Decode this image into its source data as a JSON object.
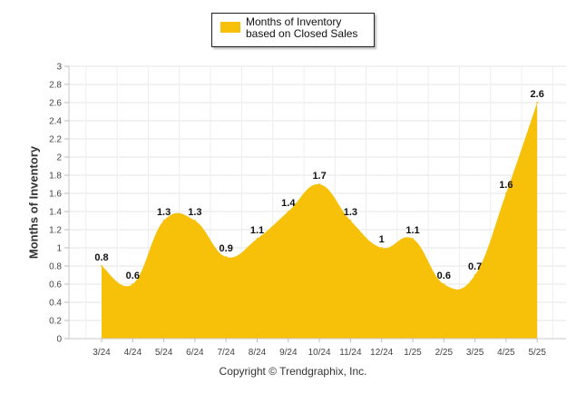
{
  "chart_data": {
    "type": "area",
    "categories": [
      "3/24",
      "4/24",
      "5/24",
      "6/24",
      "7/24",
      "8/24",
      "9/24",
      "10/24",
      "11/24",
      "12/24",
      "1/25",
      "2/25",
      "3/25",
      "4/25",
      "5/25"
    ],
    "series": [
      {
        "name": "Months of Inventory based on Closed Sales",
        "values": [
          0.8,
          0.6,
          1.3,
          1.3,
          0.9,
          1.1,
          1.4,
          1.7,
          1.3,
          1,
          1.1,
          0.6,
          0.7,
          1.6,
          2.6
        ]
      }
    ],
    "data_labels": [
      "0.8",
      "0.6",
      "1.3",
      "1.3",
      "0.9",
      "1.1",
      "1.4",
      "1.7",
      "1.3",
      "1",
      "1.1",
      "0.6",
      "0.7",
      "1.6",
      "2.6"
    ],
    "ylabel": "Months of Inventory",
    "xlabel": "",
    "ylim": [
      0,
      3
    ],
    "yticks": [
      "0",
      "0.2",
      "0.4",
      "0.6",
      "0.8",
      "1",
      "1.2",
      "1.4",
      "1.6",
      "1.8",
      "2",
      "2.2",
      "2.4",
      "2.6",
      "2.8",
      "3"
    ],
    "grid": true,
    "legend_position": "top",
    "color": "#f7c10a"
  },
  "legend_label": "Months of Inventory based on Closed Sales",
  "footer": "Copyright © Trendgraphix, Inc."
}
